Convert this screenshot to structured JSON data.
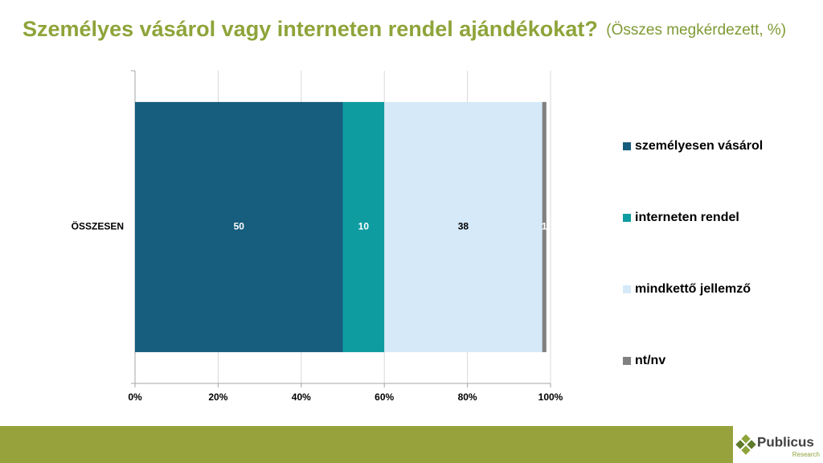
{
  "chart_data": {
    "type": "stacked-bar",
    "title": "Személyes vásárol vagy interneten rendel ajándékokat?",
    "subtitle": "(Összes megkérdezett, %)",
    "categories": [
      "ÖSSZESEN"
    ],
    "series": [
      {
        "name": "személyesen vásárol",
        "color": "#165d7e",
        "values": [
          50
        ],
        "label_color": "#ffffff"
      },
      {
        "name": "interneten rendel",
        "color": "#0f9ca1",
        "values": [
          10
        ],
        "label_color": "#ffffff"
      },
      {
        "name": "mindkettő jellemző",
        "color": "#d5e9f9",
        "values": [
          38
        ],
        "label_color": "#000000"
      },
      {
        "name": "nt/nv",
        "color": "#808080",
        "values": [
          1
        ],
        "label_color": "#ffffff"
      }
    ],
    "xlim": [
      0,
      100
    ],
    "xticks": [
      {
        "value": 0,
        "label": "0%"
      },
      {
        "value": 20,
        "label": "20%"
      },
      {
        "value": 40,
        "label": "40%"
      },
      {
        "value": 60,
        "label": "60%"
      },
      {
        "value": 80,
        "label": "80%"
      },
      {
        "value": 100,
        "label": "100%"
      }
    ],
    "grid": true,
    "legend": "right"
  },
  "brand": {
    "name": "Publicus",
    "tagline": "Research"
  }
}
